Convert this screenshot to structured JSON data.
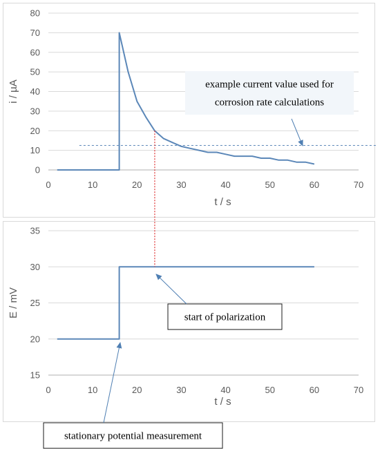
{
  "chart_data": [
    {
      "type": "line",
      "name": "current-chart",
      "xlabel": "t / s",
      "ylabel": "i / µA",
      "xlim": [
        0,
        70
      ],
      "ylim": [
        0,
        80
      ],
      "xticks": [
        0,
        10,
        20,
        30,
        40,
        50,
        60,
        70
      ],
      "yticks": [
        0,
        10,
        20,
        30,
        40,
        50,
        60,
        70,
        80
      ],
      "grid": "horizontal",
      "series": [
        {
          "color": "#5b87b8",
          "x": [
            2,
            16,
            16,
            18,
            20,
            22,
            24,
            26,
            28,
            30,
            32,
            34,
            36,
            38,
            40,
            42,
            44,
            46,
            48,
            50,
            52,
            54,
            56,
            58,
            60
          ],
          "y": [
            0,
            0,
            70,
            50,
            35,
            27,
            20,
            16,
            14,
            12,
            11,
            10,
            9,
            9,
            8,
            7,
            7,
            7,
            6,
            6,
            5,
            5,
            4,
            4,
            3
          ]
        }
      ],
      "reference_line": {
        "y": 12.5,
        "x_start": 7,
        "color": "#5b87b8",
        "style": "dashed"
      },
      "annotations": [
        {
          "name": "example-current",
          "lines": [
            "example current value used for",
            "corrosion rate calculations"
          ]
        }
      ]
    },
    {
      "type": "line",
      "name": "potential-chart",
      "xlabel": "t / s",
      "ylabel": "E / mV",
      "xlim": [
        0,
        70
      ],
      "ylim": [
        15,
        35
      ],
      "xticks": [
        0,
        10,
        20,
        30,
        40,
        50,
        60,
        70
      ],
      "yticks": [
        15,
        20,
        25,
        30,
        35
      ],
      "grid": "horizontal",
      "series": [
        {
          "color": "#5b87b8",
          "x": [
            2,
            16,
            16,
            60
          ],
          "y": [
            20,
            20,
            30,
            30
          ]
        }
      ],
      "annotations": [
        {
          "name": "start-of-polarization",
          "lines": [
            "start of polarization"
          ]
        },
        {
          "name": "stationary-potential",
          "lines": [
            "stationary potential measurement"
          ]
        }
      ]
    }
  ],
  "connector": {
    "x": 24,
    "color": "#e04040",
    "style": "dotted"
  }
}
